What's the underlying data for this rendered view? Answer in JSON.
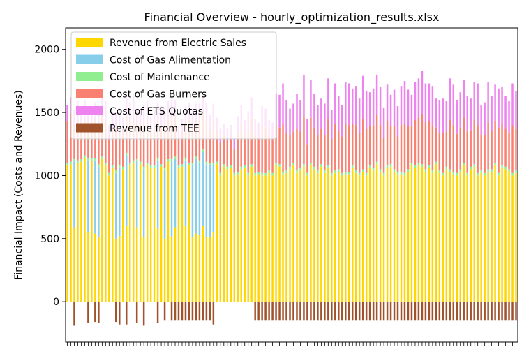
{
  "chart_data": {
    "type": "bar",
    "stacked": true,
    "title": "Financial Overview - hourly_optimization_results.xlsx",
    "xlabel": "",
    "ylabel": "Financial Impact (Costs and Revenues)",
    "ylim": [
      -320,
      2170
    ],
    "yticks": [
      0,
      500,
      1000,
      1500,
      2000
    ],
    "x_tick_labels_visible": false,
    "grid": false,
    "legend_position": "upper-left",
    "n_bars": 130,
    "series": [
      {
        "name": "Revenue from Electric Sales",
        "color": "#FFD700",
        "base": "above",
        "values": [
          1080,
          1090,
          590,
          1100,
          1110,
          1140,
          550,
          1120,
          540,
          510,
          1130,
          1080,
          1000,
          1060,
          500,
          520,
          1050,
          600,
          1080,
          1100,
          590,
          1090,
          510,
          1080,
          1060,
          1060,
          580,
          1070,
          500,
          1110,
          520,
          590,
          1060,
          1070,
          600,
          1080,
          510,
          540,
          530,
          600,
          510,
          510,
          550,
          1090,
          1000,
          1070,
          1050,
          1060,
          1000,
          1010,
          1050,
          1060,
          1000,
          1070,
          1000,
          1010,
          1000,
          1000,
          1020,
          1000,
          1080,
          1070,
          1010,
          1020,
          1050,
          1080,
          1020,
          1040,
          1070,
          1000,
          1080,
          1050,
          1020,
          1070,
          1020,
          1060,
          1000,
          1020,
          1030,
          1000,
          1010,
          1010,
          1060,
          1020,
          1000,
          1030,
          1000,
          1060,
          1040,
          1090,
          1030,
          1000,
          1060,
          1070,
          1030,
          1010,
          1010,
          1000,
          1030,
          1080,
          1060,
          1080,
          1070,
          1030,
          1060,
          1020,
          1090,
          1020,
          1000,
          1050,
          1030,
          1010,
          1000,
          1030,
          1080,
          1000,
          1050,
          1070,
          1000,
          1020,
          1000,
          1030,
          1030,
          1080,
          1000,
          1060,
          1050,
          1030,
          1000,
          1020
        ]
      },
      {
        "name": "Cost of Gas Alimentation",
        "color": "#87CEEB",
        "base": "above",
        "values": [
          0,
          0,
          520,
          0,
          0,
          0,
          570,
          0,
          580,
          560,
          0,
          0,
          0,
          0,
          520,
          540,
          0,
          560,
          0,
          0,
          520,
          0,
          540,
          0,
          0,
          0,
          540,
          0,
          540,
          0,
          590,
          540,
          0,
          0,
          520,
          0,
          570,
          590,
          570,
          590,
          580,
          570,
          530,
          0,
          0,
          0,
          0,
          0,
          0,
          0,
          0,
          0,
          0,
          0,
          0,
          0,
          0,
          0,
          0,
          0,
          0,
          0,
          0,
          0,
          0,
          0,
          0,
          0,
          0,
          0,
          0,
          0,
          0,
          0,
          0,
          0,
          0,
          0,
          0,
          0,
          0,
          0,
          0,
          0,
          0,
          0,
          0,
          0,
          0,
          0,
          0,
          0,
          0,
          0,
          0,
          0,
          0,
          0,
          0,
          0,
          0,
          0,
          0,
          0,
          0,
          0,
          0,
          0,
          0,
          0,
          0,
          0,
          0,
          0,
          0,
          0,
          0,
          0,
          0,
          0,
          0,
          0,
          0,
          0,
          0,
          0,
          0,
          0,
          0,
          0
        ]
      },
      {
        "name": "Cost of Maintenance",
        "color": "#90EE90",
        "base": "above",
        "values": [
          20,
          20,
          20,
          20,
          20,
          20,
          20,
          20,
          20,
          20,
          20,
          20,
          20,
          20,
          20,
          20,
          20,
          20,
          20,
          20,
          20,
          20,
          20,
          20,
          20,
          20,
          20,
          20,
          20,
          20,
          20,
          20,
          20,
          20,
          20,
          20,
          20,
          20,
          20,
          20,
          20,
          20,
          20,
          20,
          20,
          20,
          20,
          20,
          20,
          20,
          20,
          20,
          20,
          20,
          20,
          20,
          20,
          20,
          20,
          20,
          20,
          20,
          20,
          20,
          20,
          20,
          20,
          20,
          20,
          20,
          20,
          20,
          20,
          20,
          20,
          20,
          20,
          20,
          20,
          20,
          20,
          20,
          20,
          20,
          20,
          20,
          20,
          20,
          20,
          20,
          20,
          20,
          20,
          20,
          20,
          20,
          20,
          20,
          20,
          20,
          20,
          20,
          20,
          20,
          20,
          20,
          20,
          20,
          20,
          20,
          20,
          20,
          20,
          20,
          20,
          20,
          20,
          20,
          20,
          20,
          20,
          20,
          20,
          20,
          20,
          20,
          20,
          20,
          20,
          20
        ]
      },
      {
        "name": "Cost of Gas Burners",
        "color": "#FA8072",
        "base": "above",
        "values": [
          330,
          380,
          270,
          320,
          270,
          270,
          290,
          260,
          310,
          270,
          360,
          340,
          260,
          290,
          330,
          330,
          270,
          300,
          330,
          360,
          280,
          290,
          350,
          350,
          270,
          310,
          310,
          310,
          300,
          310,
          360,
          310,
          210,
          250,
          280,
          340,
          300,
          290,
          310,
          300,
          320,
          260,
          330,
          250,
          240,
          230,
          210,
          220,
          190,
          310,
          340,
          250,
          340,
          370,
          300,
          270,
          370,
          360,
          280,
          280,
          300,
          290,
          380,
          300,
          250,
          250,
          330,
          290,
          380,
          230,
          360,
          310,
          280,
          280,
          280,
          370,
          270,
          370,
          310,
          290,
          380,
          370,
          330,
          360,
          320,
          400,
          350,
          310,
          340,
          370,
          350,
          280,
          350,
          300,
          340,
          280,
          370,
          390,
          340,
          290,
          360,
          360,
          400,
          370,
          350,
          360,
          270,
          300,
          320,
          280,
          390,
          370,
          310,
          330,
          360,
          330,
          290,
          350,
          380,
          280,
          300,
          370,
          310,
          330,
          360,
          330,
          300,
          290,
          380,
          330
        ]
      },
      {
        "name": "Cost of ETS Quotas",
        "color": "#EE82EE",
        "base": "above",
        "values": [
          130,
          130,
          120,
          150,
          140,
          170,
          120,
          150,
          130,
          130,
          160,
          150,
          120,
          130,
          130,
          130,
          120,
          140,
          150,
          170,
          120,
          130,
          140,
          150,
          110,
          130,
          130,
          150,
          140,
          150,
          160,
          140,
          100,
          110,
          130,
          140,
          140,
          130,
          140,
          140,
          150,
          120,
          140,
          100,
          110,
          90,
          90,
          100,
          90,
          130,
          150,
          110,
          150,
          160,
          130,
          120,
          160,
          150,
          120,
          120,
          250,
          260,
          320,
          260,
          210,
          220,
          280,
          250,
          330,
          200,
          300,
          270,
          240,
          240,
          250,
          320,
          230,
          320,
          270,
          250,
          330,
          330,
          280,
          310,
          270,
          340,
          300,
          270,
          290,
          320,
          300,
          240,
          290,
          250,
          290,
          240,
          310,
          340,
          290,
          250,
          300,
          310,
          340,
          310,
          300,
          310,
          230,
          260,
          270,
          240,
          330,
          320,
          270,
          280,
          300,
          280,
          250,
          300,
          330,
          240,
          260,
          320,
          270,
          290,
          310,
          290,
          260,
          250,
          330,
          300
        ]
      },
      {
        "name": "Revenue from TEE",
        "color": "#A0522D",
        "base": "below",
        "values": [
          0,
          0,
          190,
          0,
          0,
          0,
          170,
          0,
          160,
          170,
          0,
          0,
          0,
          0,
          160,
          180,
          0,
          180,
          0,
          0,
          170,
          0,
          190,
          0,
          0,
          0,
          170,
          0,
          150,
          0,
          150,
          150,
          150,
          150,
          150,
          150,
          150,
          150,
          150,
          150,
          150,
          150,
          180,
          0,
          0,
          0,
          0,
          0,
          0,
          0,
          0,
          0,
          0,
          0,
          150,
          150,
          150,
          150,
          150,
          150,
          150,
          150,
          150,
          150,
          150,
          150,
          150,
          150,
          150,
          150,
          150,
          150,
          150,
          150,
          150,
          150,
          150,
          150,
          150,
          150,
          150,
          150,
          150,
          150,
          150,
          150,
          150,
          150,
          150,
          150,
          150,
          150,
          150,
          150,
          150,
          150,
          150,
          150,
          150,
          150,
          150,
          150,
          150,
          150,
          150,
          150,
          150,
          150,
          150,
          150,
          150,
          150,
          150,
          150,
          150,
          150,
          150,
          150,
          150,
          150,
          150,
          150,
          150,
          150,
          150,
          150,
          150,
          150,
          150,
          150
        ]
      }
    ]
  }
}
